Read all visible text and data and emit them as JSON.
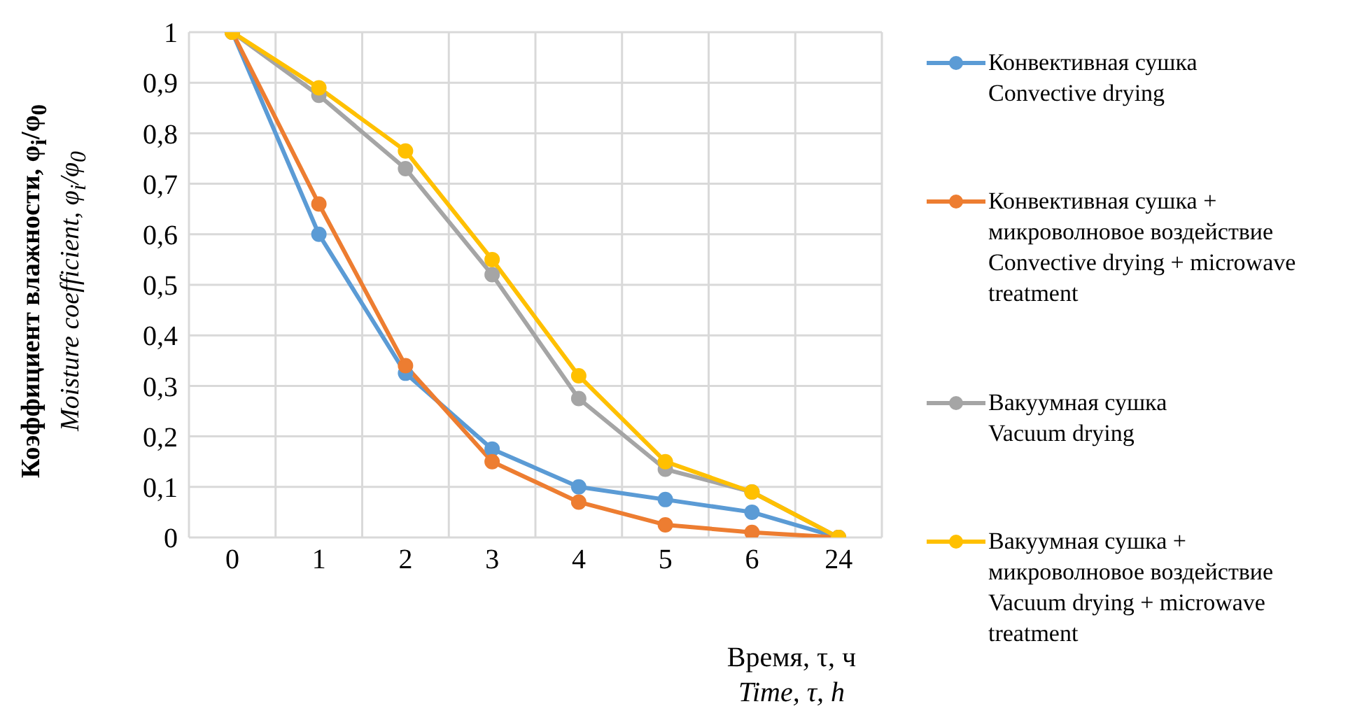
{
  "chart_data": {
    "type": "line",
    "ylabel": "Коэффициент влажности, φ$_{i}$/φ$_{0}$\nMoisture coefficient, φ$_{i}$/φ$_{0}$",
    "xlabel": "Время, τ, ч\nTime, τ, h",
    "categories": [
      "0",
      "1",
      "2",
      "3",
      "4",
      "5",
      "6",
      "24"
    ],
    "ylim": [
      0,
      1
    ],
    "yticks": [
      0,
      {
        "value": 0.1,
        "label": "0,1"
      },
      {
        "value": 0.2,
        "label": "0,2"
      },
      {
        "value": 0.3,
        "label": "0,3"
      },
      {
        "value": 0.4,
        "label": "0,4"
      },
      {
        "value": 0.5,
        "label": "0,5"
      },
      {
        "value": 0.6,
        "label": "0,6"
      },
      {
        "value": 0.7,
        "label": "0,7"
      },
      {
        "value": 0.8,
        "label": "0,8"
      },
      {
        "value": 0.9,
        "label": "0,9"
      },
      1
    ],
    "grid": true,
    "legend": "right",
    "marker": "circle",
    "line_style": "solid",
    "series": [
      {
        "name": "Конвективная сушка\nConvective drying",
        "color": "#5b9bd5",
        "values": [
          1,
          0.6,
          0.325,
          0.175,
          0.1,
          0.075,
          0.05,
          0
        ]
      },
      {
        "name": "Конвективная сушка +\nмикроволновое воздействие\nConvective drying + microwave\ntreatment",
        "color": "#ed7d31",
        "values": [
          1,
          0.66,
          0.34,
          0.15,
          0.07,
          0.025,
          0.01,
          0
        ]
      },
      {
        "name": "Вакуумная сушка\nVacuum drying",
        "color": "#a5a5a5",
        "values": [
          1,
          0.875,
          0.73,
          0.52,
          0.275,
          0.135,
          0.09,
          0
        ]
      },
      {
        "name": "Вакуумная сушка +\nмикроволновое воздействие\nVacuum drying + microwave\ntreatment",
        "color": "#ffc000",
        "values": [
          1,
          0.89,
          0.765,
          0.55,
          0.32,
          0.15,
          0.09,
          0
        ]
      }
    ]
  }
}
